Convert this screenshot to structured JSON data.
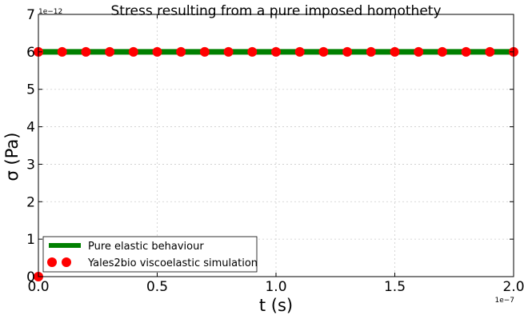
{
  "chart_data": {
    "type": "line",
    "title": "Stress resulting from a pure imposed homothety",
    "xlabel": "t (s)",
    "ylabel": "σ (Pa)",
    "x_offset_label": "1e−7",
    "y_offset_label": "1e−12",
    "xlim": [
      0.0,
      2.0
    ],
    "ylim": [
      0,
      7
    ],
    "x_ticks": [
      "0.0",
      "0.5",
      "1.0",
      "1.5",
      "2.0"
    ],
    "y_ticks": [
      "0",
      "1",
      "2",
      "3",
      "4",
      "5",
      "6",
      "7"
    ],
    "x_tick_values": [
      0.0,
      0.5,
      1.0,
      1.5,
      2.0
    ],
    "y_tick_values": [
      0,
      1,
      2,
      3,
      4,
      5,
      6,
      7
    ],
    "grid": true,
    "legend_position": "bottom-left",
    "series": [
      {
        "name": "Pure elastic behaviour",
        "kind": "line",
        "color": "#008000",
        "x": [
          0.0,
          2.0
        ],
        "y": [
          6,
          6
        ]
      },
      {
        "name": "Yales2bio viscoelastic simulation",
        "kind": "scatter",
        "color": "#ff0000",
        "x": [
          0.0,
          0.0,
          0.1,
          0.2,
          0.3,
          0.4,
          0.5,
          0.6,
          0.7,
          0.8,
          0.9,
          1.0,
          1.1,
          1.2,
          1.3,
          1.4,
          1.5,
          1.6,
          1.7,
          1.8,
          1.9,
          2.0
        ],
        "y": [
          0,
          6,
          6,
          6,
          6,
          6,
          6,
          6,
          6,
          6,
          6,
          6,
          6,
          6,
          6,
          6,
          6,
          6,
          6,
          6,
          6,
          6
        ]
      }
    ]
  }
}
